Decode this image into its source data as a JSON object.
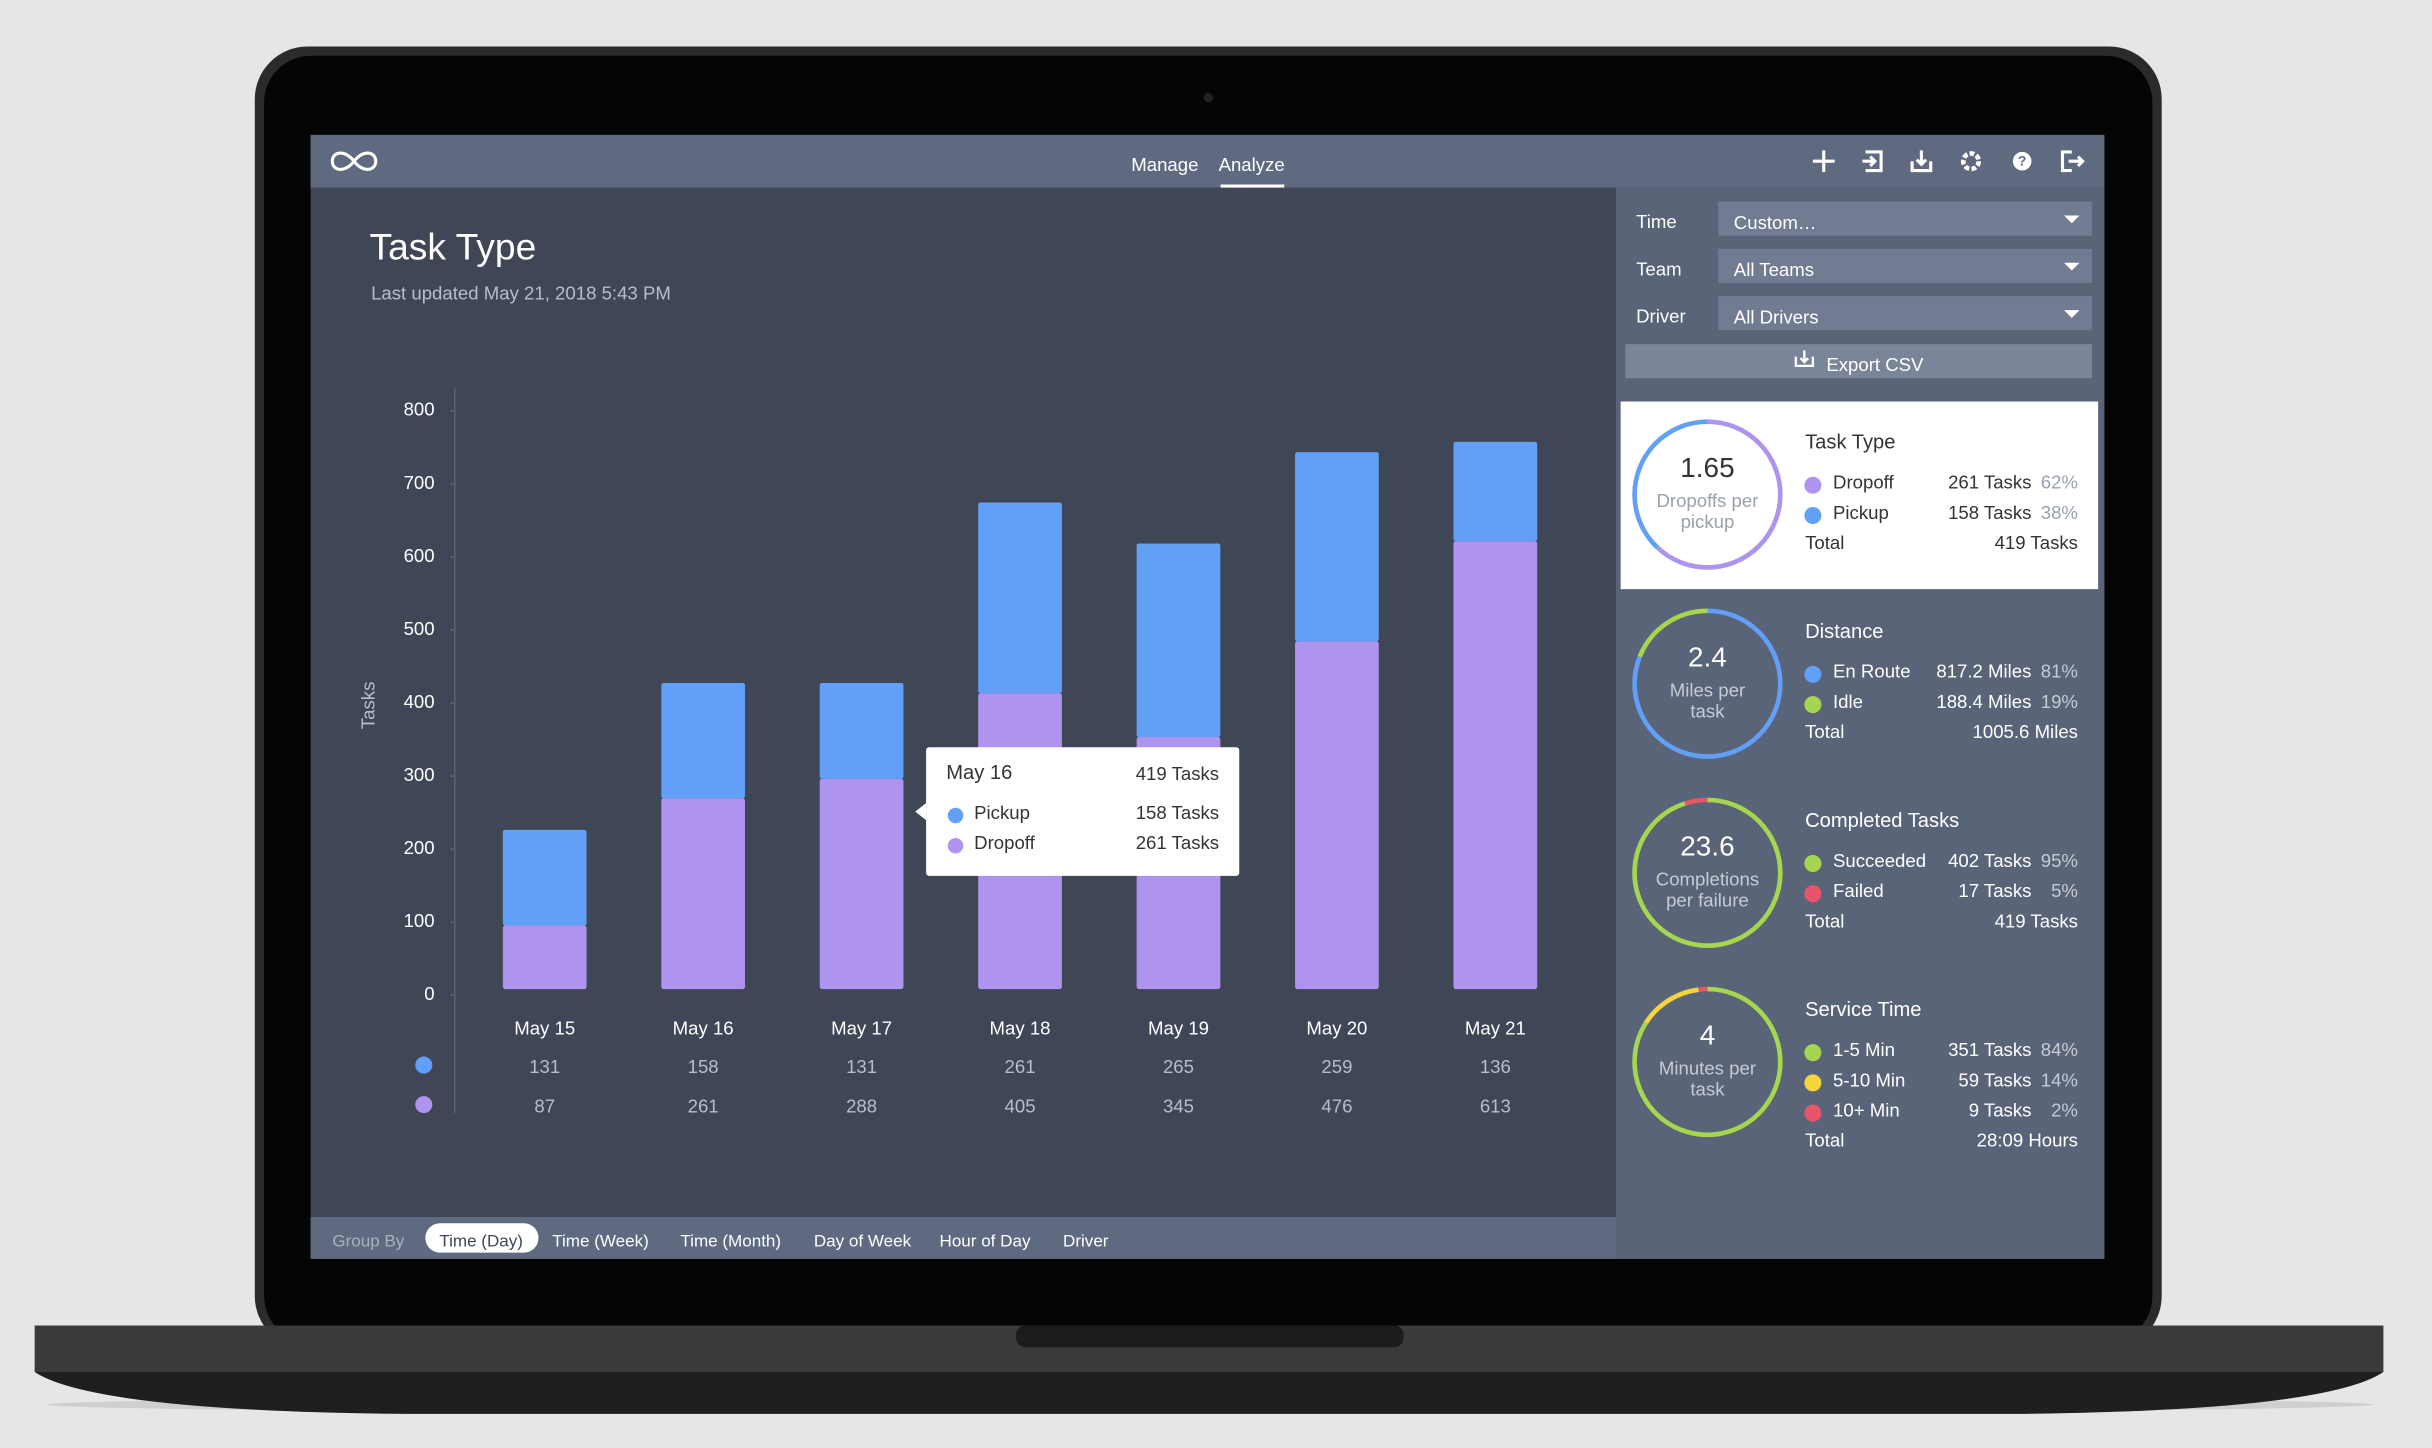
{
  "nav": {
    "tabs": [
      "Manage",
      "Analyze"
    ]
  },
  "header": {
    "title": "Task Type",
    "subtitle": "Last updated May 21, 2018 5:43 PM"
  },
  "filters": [
    {
      "label": "Time",
      "value": "Custom…"
    },
    {
      "label": "Team",
      "value": "All Teams"
    },
    {
      "label": "Driver",
      "value": "All Drivers"
    }
  ],
  "export": "Export CSV",
  "chart_data": {
    "type": "bar",
    "stacked": true,
    "y_label": "Tasks",
    "categories": [
      "May 15",
      "May 16",
      "May 17",
      "May 18",
      "May 19",
      "May 20",
      "May 21"
    ],
    "series": [
      {
        "name": "Pickup",
        "color": "#62a0f8",
        "values": [
          131,
          158,
          131,
          261,
          265,
          259,
          136
        ]
      },
      {
        "name": "Dropoff",
        "color": "#ae94ef",
        "values": [
          87,
          261,
          288,
          405,
          345,
          476,
          613
        ]
      }
    ],
    "ylim": [
      0,
      800
    ],
    "yticks": [
      0,
      100,
      200,
      300,
      400,
      500,
      600,
      700,
      800
    ]
  },
  "tooltip": {
    "title": "May 16",
    "total": "419 Tasks",
    "rows": [
      {
        "name": "Pickup",
        "value": "158 Tasks"
      },
      {
        "name": "Dropoff",
        "value": "261 Tasks"
      }
    ]
  },
  "cards": [
    {
      "title": "Task Type",
      "metric": "1.65",
      "caption": [
        "Dropoffs per",
        "pickup"
      ],
      "items": [
        {
          "name": "Dropoff",
          "value": "261 Tasks",
          "share": 62,
          "share_label": "62%",
          "color": "#ae94ef"
        },
        {
          "name": "Pickup",
          "value": "158 Tasks",
          "share": 38,
          "share_label": "38%",
          "color": "#62a0f8"
        }
      ],
      "total_label": "Total",
      "total": "419 Tasks"
    },
    {
      "title": "Distance",
      "metric": "2.4",
      "caption": [
        "Miles per",
        "task"
      ],
      "items": [
        {
          "name": "En Route",
          "value": "817.2 Miles",
          "share": 81,
          "share_label": "81%",
          "color": "#62a0f8"
        },
        {
          "name": "Idle",
          "value": "188.4 Miles",
          "share": 19,
          "share_label": "19%",
          "color": "#a5d64f"
        }
      ],
      "total_label": "Total",
      "total": "1005.6 Miles"
    },
    {
      "title": "Completed Tasks",
      "metric": "23.6",
      "caption": [
        "Completions",
        "per failure"
      ],
      "items": [
        {
          "name": "Succeeded",
          "value": "402 Tasks",
          "share": 95,
          "share_label": "95%",
          "color": "#a5d64f"
        },
        {
          "name": "Failed",
          "value": "17 Tasks",
          "share": 5,
          "share_label": "5%",
          "color": "#e8546a"
        }
      ],
      "total_label": "Total",
      "total": "419 Tasks"
    },
    {
      "title": "Service Time",
      "metric": "4",
      "caption": [
        "Minutes per",
        "task"
      ],
      "items": [
        {
          "name": "1-5 Min",
          "value": "351 Tasks",
          "share": 84,
          "share_label": "84%",
          "color": "#a5d64f"
        },
        {
          "name": "5-10 Min",
          "value": "59 Tasks",
          "share": 14,
          "share_label": "14%",
          "color": "#f5d53c"
        },
        {
          "name": "10+ Min",
          "value": "9 Tasks",
          "share": 2,
          "share_label": "2%",
          "color": "#e8546a"
        }
      ],
      "total_label": "Total",
      "total": "28:09 Hours"
    }
  ],
  "group_by": {
    "label": "Group By",
    "options": [
      "Time (Day)",
      "Time (Week)",
      "Time (Month)",
      "Day of Week",
      "Hour of Day",
      "Driver"
    ]
  }
}
